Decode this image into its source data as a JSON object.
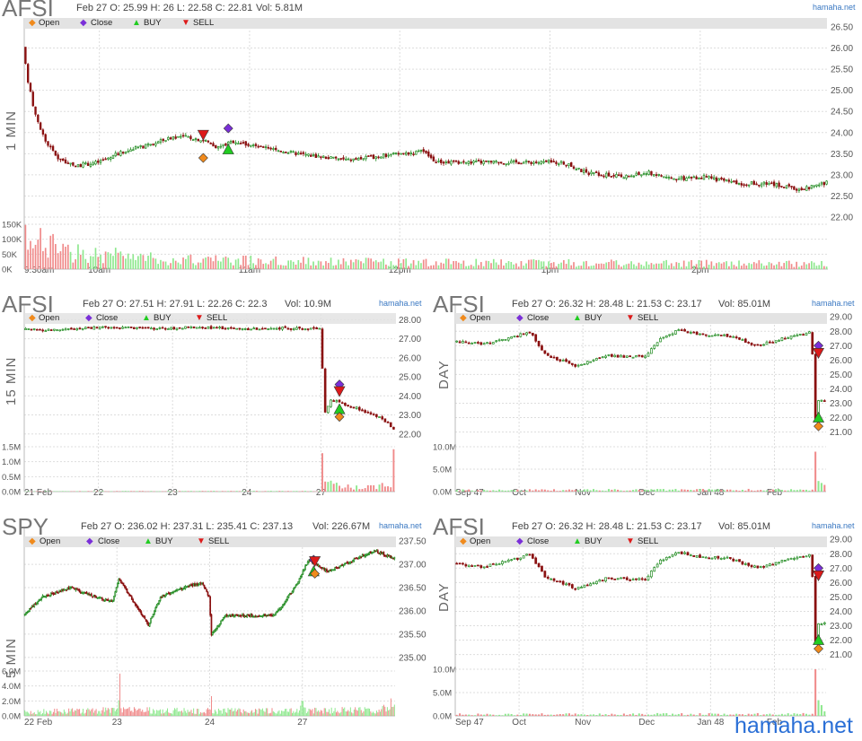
{
  "panels": [
    {
      "id": "p1",
      "symbol": "AFSI",
      "ohlc": "Feb 27 O: 25.99 H: 26 L: 22.58 C: 22.81",
      "volume": "Vol: 5.81M",
      "source": "hamaha.net",
      "interval": "1 MIN",
      "legend": [
        "Open",
        "Close",
        "BUY",
        "SELL"
      ]
    },
    {
      "id": "p2",
      "symbol": "AFSI",
      "ohlc": "Feb 27 O: 27.51 H: 27.91 L: 22.26 C: 22.3",
      "volume": "Vol: 10.9M",
      "source": "hamaha.net",
      "interval": "15 MIN",
      "legend": [
        "Open",
        "Close",
        "BUY",
        "SELL"
      ]
    },
    {
      "id": "p3",
      "symbol": "AFSI",
      "ohlc": "Feb 27 O: 26.32 H: 28.48 L: 21.53 C: 23.17",
      "volume": "Vol: 85.01M",
      "source": "hamaha.net",
      "interval": "DAY",
      "legend": [
        "Open",
        "Close",
        "BUY",
        "SELL"
      ]
    },
    {
      "id": "p4",
      "symbol": "SPY",
      "ohlc": "Feb 27 O: 236.02 H: 237.31 L: 235.41 C: 237.13",
      "volume": "Vol: 226.67M",
      "source": "hamaha.net",
      "interval": "5 MIN",
      "legend": [
        "Open",
        "Close",
        "BUY",
        "SELL"
      ]
    },
    {
      "id": "p5",
      "symbol": "AFSI",
      "ohlc": "Feb 27 O: 26.32 H: 28.48 L: 21.53 C: 23.17",
      "volume": "Vol: 85.01M",
      "source": "hamaha.net",
      "interval": "DAY",
      "legend": [
        "Open",
        "Close",
        "BUY",
        "SELL"
      ]
    }
  ],
  "watermark": "hamaha.net",
  "colors": {
    "up": "#1e8a1e",
    "down": "#8a1010",
    "vol_up": "#8ee88e",
    "vol_down": "#f08a8a",
    "grid": "#dddddd",
    "open": "#f08a1c",
    "close": "#7a2fd8",
    "buy": "#22cc22",
    "sell": "#dd1a1a"
  },
  "chart_data": [
    {
      "panel": "p1",
      "type": "candlestick",
      "price_ticks": [
        "26.50",
        "26.00",
        "25.50",
        "25.00",
        "24.50",
        "24.00",
        "23.50",
        "23.00",
        "22.50",
        "22.00"
      ],
      "ylim": [
        22.0,
        26.5
      ],
      "x_ticks": [
        "9:30am",
        "10am",
        "11am",
        "12pm",
        "1pm",
        "2pm"
      ],
      "x_tick_pos": [
        0,
        30,
        90,
        150,
        210,
        270
      ],
      "x_count": 321,
      "volume_ticks": [
        "150K",
        "100K",
        "50K",
        "0K"
      ],
      "volume_max": 150000,
      "anchors": [
        [
          0,
          26.0
        ],
        [
          2,
          25.2
        ],
        [
          5,
          24.4
        ],
        [
          9,
          23.8
        ],
        [
          14,
          23.4
        ],
        [
          20,
          23.2
        ],
        [
          30,
          23.3
        ],
        [
          40,
          23.55
        ],
        [
          50,
          23.7
        ],
        [
          60,
          23.9
        ],
        [
          66,
          23.9
        ],
        [
          73,
          23.8
        ],
        [
          78,
          23.65
        ],
        [
          84,
          23.8
        ],
        [
          95,
          23.65
        ],
        [
          110,
          23.5
        ],
        [
          130,
          23.35
        ],
        [
          150,
          23.5
        ],
        [
          160,
          23.55
        ],
        [
          165,
          23.3
        ],
        [
          195,
          23.3
        ],
        [
          215,
          23.3
        ],
        [
          225,
          23.05
        ],
        [
          240,
          22.95
        ],
        [
          250,
          23.05
        ],
        [
          260,
          22.9
        ],
        [
          272,
          22.95
        ],
        [
          285,
          22.8
        ],
        [
          300,
          22.78
        ],
        [
          310,
          22.65
        ],
        [
          321,
          22.81
        ]
      ],
      "volume_anchors": [
        [
          0,
          110000
        ],
        [
          20,
          60000
        ],
        [
          60,
          35000
        ],
        [
          150,
          25000
        ],
        [
          321,
          20000
        ]
      ],
      "markers": [
        {
          "type": "sell",
          "x": 71,
          "y": 23.95
        },
        {
          "type": "open",
          "x": 71,
          "y": 23.4
        },
        {
          "type": "close",
          "x": 81,
          "y": 24.1
        },
        {
          "type": "buy",
          "x": 81,
          "y": 23.6
        }
      ]
    },
    {
      "panel": "p2",
      "type": "candlestick",
      "price_ticks": [
        "28.00",
        "27.00",
        "26.00",
        "25.00",
        "24.00",
        "23.00",
        "22.00"
      ],
      "ylim": [
        21.8,
        28.3
      ],
      "x_ticks": [
        "21 Feb",
        "22",
        "23",
        "24",
        "27"
      ],
      "x_tick_pos": [
        0,
        26,
        52,
        78,
        104
      ],
      "x_count": 130,
      "volume_ticks": [
        "1.5M",
        "1.0M",
        "0.5M",
        "0.0M"
      ],
      "volume_max": 1500000,
      "anchors": [
        [
          0,
          27.5
        ],
        [
          10,
          27.45
        ],
        [
          20,
          27.55
        ],
        [
          30,
          27.6
        ],
        [
          40,
          27.55
        ],
        [
          50,
          27.55
        ],
        [
          60,
          27.6
        ],
        [
          70,
          27.55
        ],
        [
          80,
          27.5
        ],
        [
          90,
          27.55
        ],
        [
          104,
          27.5
        ],
        [
          105,
          25.5
        ],
        [
          106,
          23.1
        ],
        [
          108,
          23.8
        ],
        [
          112,
          23.6
        ],
        [
          118,
          23.3
        ],
        [
          125,
          22.9
        ],
        [
          130,
          22.3
        ]
      ],
      "volume_anchors": [
        [
          0,
          15000
        ],
        [
          103,
          20000
        ],
        [
          104,
          1000000
        ],
        [
          105,
          300000
        ],
        [
          110,
          200000
        ],
        [
          128,
          200000
        ],
        [
          129,
          1100000
        ],
        [
          130,
          300000
        ]
      ],
      "markers": [
        {
          "type": "close",
          "x": 110,
          "y": 24.6
        },
        {
          "type": "sell",
          "x": 110,
          "y": 24.25
        },
        {
          "type": "buy",
          "x": 110,
          "y": 23.3
        },
        {
          "type": "open",
          "x": 110,
          "y": 22.9
        }
      ]
    },
    {
      "panel": "p3",
      "type": "candlestick",
      "price_ticks": [
        "29.00",
        "28.00",
        "27.00",
        "26.00",
        "25.00",
        "24.00",
        "23.00",
        "22.00",
        "21.00"
      ],
      "ylim": [
        20.6,
        29.2
      ],
      "x_ticks": [
        "Sep 47",
        "Oct",
        "Nov",
        "Dec",
        "Jan 48",
        "Feb"
      ],
      "x_tick_pos": [
        0,
        21,
        42,
        63,
        84,
        105
      ],
      "x_count": 122,
      "volume_ticks": [
        "10.0M",
        "5.0M",
        "0.0M"
      ],
      "volume_max": 11000000,
      "anchors": [
        [
          0,
          27.3
        ],
        [
          10,
          27.1
        ],
        [
          20,
          27.6
        ],
        [
          25,
          28.0
        ],
        [
          30,
          26.4
        ],
        [
          40,
          25.6
        ],
        [
          50,
          26.3
        ],
        [
          63,
          26.2
        ],
        [
          68,
          27.5
        ],
        [
          74,
          28.1
        ],
        [
          80,
          27.8
        ],
        [
          90,
          27.7
        ],
        [
          100,
          27.0
        ],
        [
          110,
          27.6
        ],
        [
          117,
          27.9
        ],
        [
          118,
          26.4
        ],
        [
          119,
          22.0
        ],
        [
          120,
          23.2
        ],
        [
          122,
          23.17
        ]
      ],
      "volume_anchors": [
        [
          0,
          400000
        ],
        [
          117,
          500000
        ],
        [
          118,
          9000000
        ],
        [
          119,
          3500000
        ],
        [
          120,
          1800000
        ],
        [
          122,
          600000
        ]
      ],
      "markers": [
        {
          "type": "close",
          "x": 119,
          "y": 27.0
        },
        {
          "type": "sell",
          "x": 119,
          "y": 26.5
        },
        {
          "type": "buy",
          "x": 119,
          "y": 22.0
        },
        {
          "type": "open",
          "x": 119,
          "y": 21.4
        }
      ]
    },
    {
      "panel": "p4",
      "type": "candlestick",
      "price_ticks": [
        "237.50",
        "237.00",
        "236.50",
        "236.00",
        "235.50",
        "235.00"
      ],
      "ylim": [
        234.9,
        237.6
      ],
      "x_ticks": [
        "22 Feb",
        "23",
        "24",
        "27"
      ],
      "x_tick_pos": [
        0,
        78,
        156,
        234
      ],
      "x_count": 312,
      "volume_ticks": [
        "6.0M",
        "4.0M",
        "2.0M",
        "0.0M"
      ],
      "volume_max": 6500000,
      "anchors": [
        [
          0,
          235.9
        ],
        [
          15,
          236.3
        ],
        [
          40,
          236.5
        ],
        [
          60,
          236.3
        ],
        [
          75,
          236.2
        ],
        [
          80,
          236.7
        ],
        [
          90,
          236.3
        ],
        [
          100,
          235.9
        ],
        [
          105,
          235.7
        ],
        [
          115,
          236.3
        ],
        [
          135,
          236.5
        ],
        [
          150,
          236.6
        ],
        [
          156,
          236.3
        ],
        [
          158,
          235.5
        ],
        [
          170,
          235.9
        ],
        [
          185,
          235.9
        ],
        [
          210,
          235.9
        ],
        [
          220,
          236.2
        ],
        [
          230,
          236.6
        ],
        [
          234,
          236.8
        ],
        [
          240,
          237.1
        ],
        [
          255,
          236.85
        ],
        [
          270,
          237.0
        ],
        [
          295,
          237.3
        ],
        [
          312,
          237.13
        ]
      ],
      "volume_anchors": [
        [
          0,
          600000
        ],
        [
          30,
          800000
        ],
        [
          78,
          900000
        ],
        [
          80,
          4500000
        ],
        [
          82,
          900000
        ],
        [
          156,
          800000
        ],
        [
          157,
          3500000
        ],
        [
          158,
          800000
        ],
        [
          230,
          800000
        ],
        [
          233,
          5000000
        ],
        [
          236,
          900000
        ],
        [
          300,
          900000
        ],
        [
          312,
          2500000
        ]
      ],
      "markers": [
        {
          "type": "close",
          "x": 243,
          "y": 237.1
        },
        {
          "type": "sell",
          "x": 244,
          "y": 237.07
        },
        {
          "type": "buy",
          "x": 243,
          "y": 236.85
        },
        {
          "type": "open",
          "x": 244,
          "y": 236.8
        }
      ]
    },
    {
      "panel": "p5",
      "type": "candlestick",
      "price_ticks": [
        "29.00",
        "28.00",
        "27.00",
        "26.00",
        "25.00",
        "24.00",
        "23.00",
        "22.00",
        "21.00"
      ],
      "ylim": [
        20.6,
        29.2
      ],
      "x_ticks": [
        "Sep 47",
        "Oct",
        "Nov",
        "Dec",
        "Jan 48",
        "Feb"
      ],
      "x_tick_pos": [
        0,
        21,
        42,
        63,
        84,
        105
      ],
      "x_count": 122,
      "volume_ticks": [
        "10.0M",
        "5.0M",
        "0.0M"
      ],
      "volume_max": 11000000,
      "anchors": [
        [
          0,
          27.3
        ],
        [
          10,
          27.1
        ],
        [
          20,
          27.6
        ],
        [
          25,
          28.0
        ],
        [
          30,
          26.4
        ],
        [
          40,
          25.6
        ],
        [
          50,
          26.3
        ],
        [
          63,
          26.2
        ],
        [
          68,
          27.5
        ],
        [
          74,
          28.1
        ],
        [
          80,
          27.8
        ],
        [
          90,
          27.7
        ],
        [
          100,
          27.0
        ],
        [
          110,
          27.6
        ],
        [
          117,
          27.9
        ],
        [
          118,
          26.4
        ],
        [
          119,
          22.0
        ],
        [
          120,
          23.2
        ],
        [
          122,
          23.17
        ]
      ],
      "volume_anchors": [
        [
          0,
          400000
        ],
        [
          117,
          500000
        ],
        [
          118,
          9000000
        ],
        [
          119,
          3500000
        ],
        [
          120,
          1800000
        ],
        [
          122,
          600000
        ]
      ],
      "markers": [
        {
          "type": "close",
          "x": 119,
          "y": 27.0
        },
        {
          "type": "sell",
          "x": 119,
          "y": 26.5
        },
        {
          "type": "buy",
          "x": 119,
          "y": 22.0
        },
        {
          "type": "open",
          "x": 119,
          "y": 21.4
        }
      ]
    }
  ]
}
